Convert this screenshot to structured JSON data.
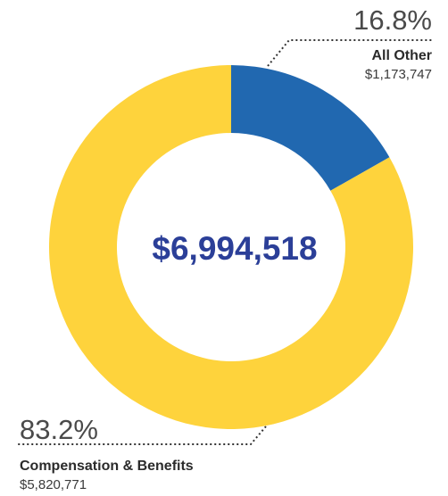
{
  "chart_data": {
    "type": "pie",
    "total_label": "$6,994,518",
    "slices": [
      {
        "label": "All Other",
        "percent_label": "16.8%",
        "value_label": "$1,173,747",
        "value": 1173747,
        "percent": 16.8,
        "color": "#2168b0"
      },
      {
        "label": "Compensation & Benefits",
        "percent_label": "83.2%",
        "value_label": "$5,820,771",
        "value": 5820771,
        "percent": 83.2,
        "color": "#fed33c"
      }
    ]
  }
}
